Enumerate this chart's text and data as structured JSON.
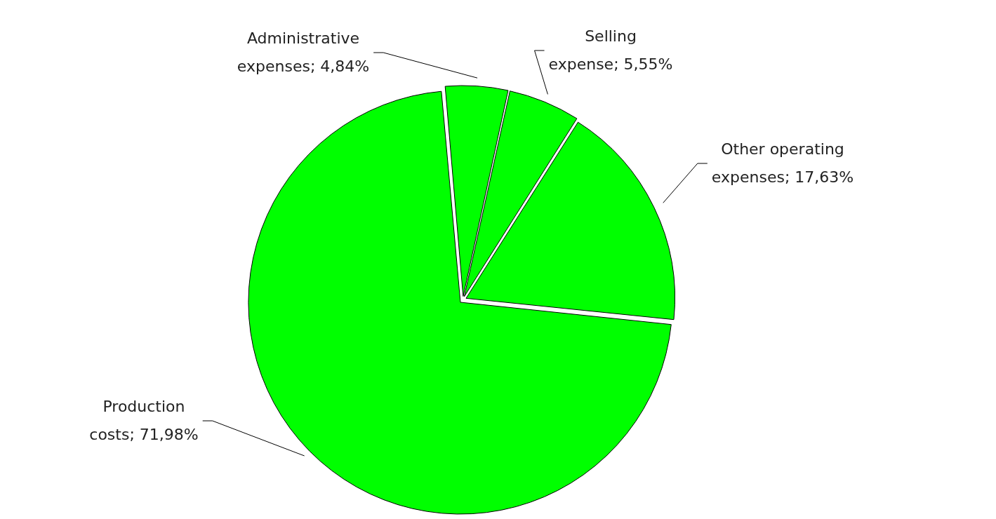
{
  "chart_data": {
    "type": "pie",
    "categories": [
      "Administrative expenses",
      "Selling expense",
      "Other operating expenses",
      "Production costs"
    ],
    "values": [
      4.84,
      5.55,
      17.63,
      71.98
    ],
    "colors": [
      "#00ff00",
      "#00ff00",
      "#00ff00",
      "#00ff00"
    ],
    "value_labels": [
      "4,84%",
      "5,55%",
      "17,63%",
      "71,98%"
    ],
    "legend": false
  }
}
